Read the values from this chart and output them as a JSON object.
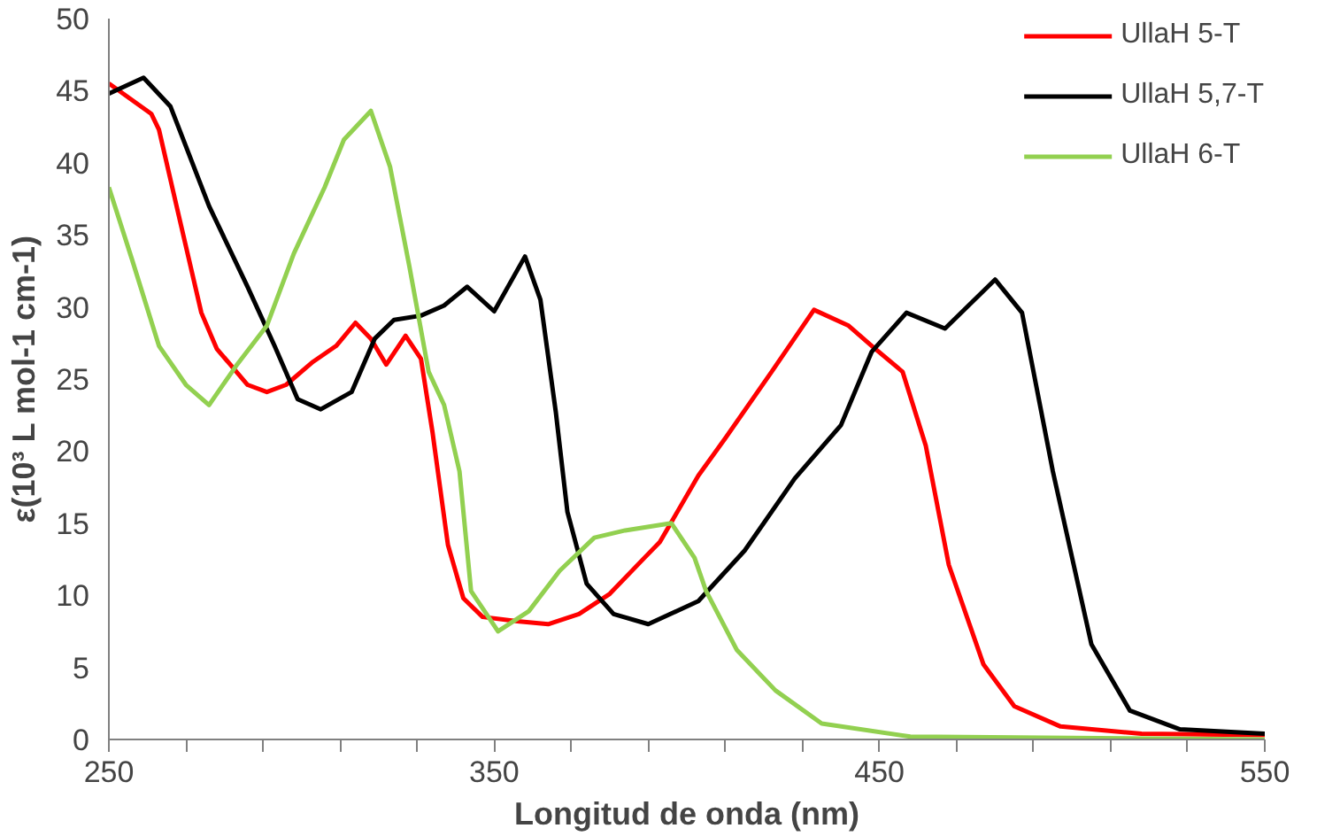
{
  "chart_data": {
    "type": "line",
    "xlabel": "Longitud de onda (nm)",
    "ylabel": "ε(10³ L mol-1 cm-1)",
    "xlim": [
      250,
      550
    ],
    "ylim": [
      0,
      50
    ],
    "xticks": [
      250,
      {
        "value": 270,
        "label": null
      },
      {
        "value": 290,
        "label": null
      },
      {
        "value": 310,
        "label": null
      },
      {
        "value": 330,
        "label": null
      },
      350,
      {
        "value": 370,
        "label": null
      },
      {
        "value": 390,
        "label": null
      },
      {
        "value": 410,
        "label": null
      },
      {
        "value": 430,
        "label": null
      },
      450,
      {
        "value": 470,
        "label": null
      },
      {
        "value": 490,
        "label": null
      },
      {
        "value": 510,
        "label": null
      },
      {
        "value": 530,
        "label": null
      },
      550
    ],
    "yticks": [
      0,
      5,
      10,
      15,
      20,
      25,
      30,
      35,
      40,
      45,
      50
    ],
    "grid": false,
    "legend": "top right",
    "marker": "none",
    "line_style": "solid",
    "series": [
      {
        "name": "UllaH 5-T",
        "color": "#ff0000",
        "x": [
          250,
          261,
          263,
          268,
          274,
          278,
          286,
          291,
          296,
          303,
          309,
          314,
          318,
          322,
          327,
          331,
          334,
          338,
          342,
          347,
          356,
          364,
          372,
          380,
          389,
          393,
          403,
          410,
          422,
          433,
          442,
          448,
          456,
          462,
          468,
          477,
          485,
          497,
          518,
          550
        ],
        "values": [
          45.5,
          43.4,
          42.3,
          36.5,
          29.6,
          27.1,
          24.6,
          24.1,
          24.6,
          26.2,
          27.3,
          28.9,
          27.8,
          26.0,
          28.0,
          26.4,
          21.3,
          13.5,
          9.8,
          8.5,
          8.2,
          8.0,
          8.7,
          10.1,
          12.6,
          13.7,
          18.3,
          20.9,
          25.5,
          29.8,
          28.7,
          27.3,
          25.5,
          20.4,
          12.1,
          5.2,
          2.3,
          0.9,
          0.4,
          0.3
        ]
      },
      {
        "name": "UllaH 5,7-T",
        "color": "#000000",
        "x": [
          250,
          259,
          266,
          276,
          286,
          293,
          299,
          305,
          313,
          319,
          324,
          331,
          337,
          343,
          350,
          358,
          362,
          366,
          369,
          374,
          381,
          390,
          403,
          415,
          428,
          440,
          448,
          457,
          467,
          480,
          487,
          495,
          505,
          515,
          528,
          550
        ],
        "values": [
          44.8,
          45.9,
          43.9,
          37.0,
          31.4,
          27.3,
          23.6,
          22.9,
          24.1,
          27.8,
          29.1,
          29.4,
          30.1,
          31.4,
          29.7,
          33.5,
          30.5,
          22.7,
          15.8,
          10.8,
          8.7,
          8.0,
          9.6,
          13.1,
          18.1,
          21.8,
          26.9,
          29.6,
          28.5,
          31.9,
          29.6,
          18.6,
          6.6,
          2.0,
          0.7,
          0.4
        ]
      },
      {
        "name": "UllaH 6-T",
        "color": "#92d050",
        "x": [
          250,
          256,
          263,
          270,
          276,
          283,
          291,
          298,
          306,
          311,
          318,
          323,
          328,
          333,
          337,
          341,
          344,
          351,
          359,
          367,
          376,
          384,
          396,
          402,
          405,
          413,
          423,
          435,
          458,
          550
        ],
        "values": [
          38.3,
          33.3,
          27.3,
          24.6,
          23.2,
          25.9,
          28.7,
          33.7,
          38.3,
          41.6,
          43.6,
          39.7,
          32.8,
          25.5,
          23.2,
          18.6,
          10.3,
          7.5,
          8.9,
          11.7,
          14.0,
          14.5,
          15.0,
          12.6,
          10.3,
          6.2,
          3.4,
          1.1,
          0.2,
          0
        ]
      }
    ]
  }
}
